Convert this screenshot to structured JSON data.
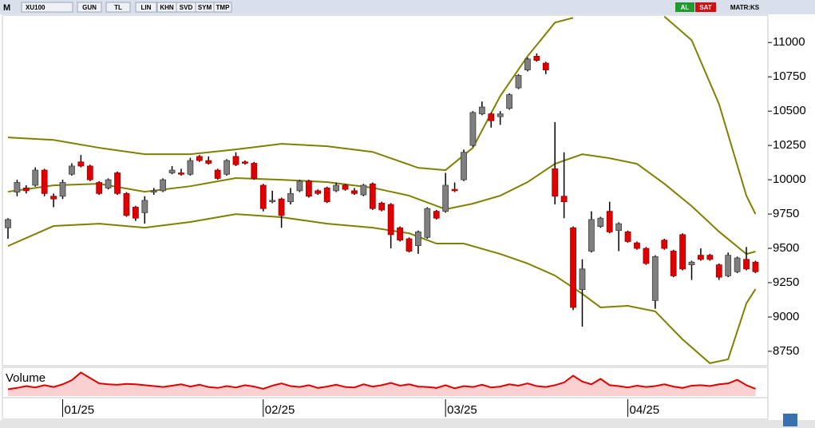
{
  "toolbar": {
    "menu": "M",
    "symbol": "XU100",
    "buttons": [
      "GUN",
      "TL",
      "LIN",
      "KHN",
      "SVD",
      "SYM",
      "TMP"
    ],
    "buy": "AL",
    "sell": "SAT",
    "layout": "MATR:KS"
  },
  "chart_data": {
    "type": "candlestick",
    "up_color": "#7f7f7f",
    "down_color": "#e00000",
    "candles": [
      [
        9650,
        9720,
        9570,
        9710
      ],
      [
        9910,
        10000,
        9880,
        9980
      ],
      [
        9940,
        9960,
        9900,
        9920
      ],
      [
        9960,
        10090,
        9950,
        10070
      ],
      [
        10070,
        10080,
        9880,
        9900
      ],
      [
        9880,
        9900,
        9800,
        9860
      ],
      [
        9880,
        10000,
        9860,
        9980
      ],
      [
        10040,
        10120,
        10030,
        10100
      ],
      [
        10130,
        10180,
        10090,
        10100
      ],
      [
        10100,
        10110,
        9990,
        10000
      ],
      [
        9980,
        9990,
        9890,
        9900
      ],
      [
        9940,
        10010,
        9930,
        10000
      ],
      [
        10050,
        10060,
        9890,
        9900
      ],
      [
        9900,
        9910,
        9730,
        9740
      ],
      [
        9800,
        9810,
        9700,
        9720
      ],
      [
        9760,
        9880,
        9680,
        9850
      ],
      [
        9910,
        9940,
        9890,
        9920
      ],
      [
        9920,
        10010,
        9910,
        10000
      ],
      [
        10050,
        10100,
        10040,
        10070
      ],
      [
        10050,
        10080,
        10030,
        10040
      ],
      [
        10040,
        10160,
        10030,
        10140
      ],
      [
        10170,
        10180,
        10130,
        10140
      ],
      [
        10140,
        10170,
        10110,
        10120
      ],
      [
        10070,
        10080,
        10000,
        10010
      ],
      [
        10040,
        10150,
        10030,
        10140
      ],
      [
        10170,
        10200,
        10100,
        10110
      ],
      [
        10130,
        10140,
        10110,
        10120
      ],
      [
        10120,
        10130,
        10000,
        10010
      ],
      [
        9960,
        9970,
        9770,
        9790
      ],
      [
        9840,
        9920,
        9830,
        9850
      ],
      [
        9860,
        9870,
        9650,
        9740
      ],
      [
        9840,
        9940,
        9820,
        9900
      ],
      [
        9920,
        10000,
        9910,
        9990
      ],
      [
        9990,
        10000,
        9870,
        9880
      ],
      [
        9920,
        9930,
        9890,
        9900
      ],
      [
        9940,
        9950,
        9830,
        9840
      ],
      [
        9920,
        9980,
        9910,
        9960
      ],
      [
        9960,
        9970,
        9920,
        9930
      ],
      [
        9920,
        9940,
        9890,
        9900
      ],
      [
        9890,
        9970,
        9880,
        9960
      ],
      [
        9970,
        9980,
        9780,
        9790
      ],
      [
        9830,
        9840,
        9770,
        9780
      ],
      [
        9820,
        9830,
        9500,
        9600
      ],
      [
        9650,
        9660,
        9550,
        9560
      ],
      [
        9570,
        9580,
        9470,
        9480
      ],
      [
        9520,
        9630,
        9460,
        9620
      ],
      [
        9580,
        9800,
        9570,
        9790
      ],
      [
        9770,
        9780,
        9710,
        9720
      ],
      [
        9770,
        10050,
        9760,
        9960
      ],
      [
        9930,
        9980,
        9910,
        9920
      ],
      [
        10000,
        10220,
        9990,
        10200
      ],
      [
        10250,
        10500,
        10240,
        10490
      ],
      [
        10480,
        10570,
        10470,
        10530
      ],
      [
        10480,
        10490,
        10380,
        10430
      ],
      [
        10460,
        10500,
        10400,
        10480
      ],
      [
        10520,
        10630,
        10510,
        10620
      ],
      [
        10670,
        10770,
        10660,
        10760
      ],
      [
        10800,
        10890,
        10790,
        10880
      ],
      [
        10900,
        10920,
        10860,
        10870
      ],
      [
        10850,
        10860,
        10770,
        10800
      ],
      [
        10080,
        10420,
        9820,
        9880
      ],
      [
        9880,
        10200,
        9720,
        9840
      ],
      [
        9650,
        9660,
        9050,
        9070
      ],
      [
        9200,
        9420,
        8930,
        9350
      ],
      [
        9480,
        9770,
        9470,
        9710
      ],
      [
        9660,
        9730,
        9650,
        9720
      ],
      [
        9770,
        9840,
        9610,
        9620
      ],
      [
        9630,
        9690,
        9480,
        9680
      ],
      [
        9620,
        9630,
        9540,
        9550
      ],
      [
        9540,
        9550,
        9490,
        9500
      ],
      [
        9500,
        9510,
        9380,
        9390
      ],
      [
        9120,
        9450,
        9060,
        9440
      ],
      [
        9560,
        9570,
        9490,
        9500
      ],
      [
        9480,
        9490,
        9290,
        9300
      ],
      [
        9600,
        9610,
        9340,
        9350
      ],
      [
        9380,
        9410,
        9270,
        9400
      ],
      [
        9450,
        9500,
        9410,
        9420
      ],
      [
        9450,
        9460,
        9410,
        9420
      ],
      [
        9380,
        9390,
        9270,
        9290
      ],
      [
        9300,
        9470,
        9290,
        9450
      ],
      [
        9330,
        9440,
        9320,
        9430
      ],
      [
        9420,
        9510,
        9340,
        9350
      ],
      [
        9400,
        9410,
        9320,
        9330
      ]
    ],
    "bands": [
      {
        "color": "#808000",
        "x": [
          0,
          5,
          10,
          15,
          20,
          25,
          30,
          35,
          40,
          45,
          48,
          51,
          54,
          57,
          60,
          62
        ],
        "values": [
          10308,
          10290,
          10233,
          10186,
          10186,
          10221,
          10262,
          10244,
          10203,
          10087,
          10070,
          10233,
          10610,
          10900,
          11145,
          11180
        ]
      },
      {
        "color": "#808000",
        "x": [
          72,
          75,
          78,
          81,
          82
        ],
        "values": [
          11190,
          11017,
          10552,
          9884,
          9750
        ]
      },
      {
        "color": "#808000",
        "x": [
          0,
          5,
          10,
          15,
          20,
          25,
          30,
          35,
          40,
          44,
          48,
          51,
          54,
          57,
          60,
          63,
          66,
          69,
          72,
          75,
          78,
          81,
          82
        ],
        "values": [
          9913,
          9959,
          9971,
          9913,
          9953,
          10012,
          10000,
          9983,
          9942,
          9884,
          9785,
          9826,
          9884,
          9983,
          10116,
          10186,
          10157,
          10116,
          9971,
          9808,
          9622,
          9459,
          9477
        ]
      },
      {
        "color": "#808000",
        "x": [
          0,
          5,
          10,
          15,
          20,
          25,
          30,
          35,
          40,
          44,
          47,
          50,
          54,
          57,
          60,
          63,
          65,
          68,
          71,
          74,
          77,
          79,
          81,
          82
        ],
        "values": [
          9517,
          9663,
          9680,
          9651,
          9692,
          9750,
          9727,
          9680,
          9651,
          9610,
          9535,
          9535,
          9459,
          9390,
          9302,
          9169,
          9070,
          9081,
          9041,
          8837,
          8663,
          8692,
          9099,
          9203
        ]
      }
    ],
    "ylim": [
      8645,
      11205
    ],
    "yticks": [
      8750,
      9000,
      9250,
      9500,
      9750,
      10000,
      10250,
      10500,
      10750,
      11000
    ],
    "xticks": [
      {
        "value": 6,
        "label": "01/25"
      },
      {
        "value": 28,
        "label": "02/25"
      },
      {
        "value": 48,
        "label": "03/25"
      },
      {
        "value": 68,
        "label": "04/25"
      }
    ],
    "volume": {
      "title": "Volume",
      "color": "#e00000",
      "fill": "#fbd0d0",
      "ylim": [
        0,
        6
      ],
      "values": [
        1.5,
        1.8,
        2.2,
        1.9,
        2.4,
        2.0,
        2.6,
        3.5,
        5.2,
        4.0,
        2.8,
        2.6,
        2.5,
        2.7,
        2.6,
        2.4,
        2.2,
        2.0,
        2.3,
        2.6,
        2.1,
        2.5,
        2.0,
        1.8,
        2.2,
        1.9,
        2.4,
        2.1,
        1.6,
        2.3,
        2.8,
        2.2,
        2.0,
        2.4,
        1.8,
        2.1,
        2.5,
        2.0,
        1.9,
        2.6,
        2.1,
        2.4,
        2.9,
        2.3,
        2.6,
        2.1,
        2.0,
        1.8,
        2.4,
        1.7,
        2.2,
        2.0,
        2.5,
        1.9,
        2.1,
        2.6,
        2.3,
        2.8,
        2.2,
        2.0,
        2.4,
        3.0,
        4.5,
        3.2,
        2.6,
        3.8,
        2.4,
        2.2,
        1.9,
        2.3,
        2.0,
        2.2,
        2.6,
        2.1,
        1.8,
        2.3,
        2.4,
        2.2,
        2.6,
        2.8,
        3.6,
        2.4,
        1.6
      ]
    }
  }
}
